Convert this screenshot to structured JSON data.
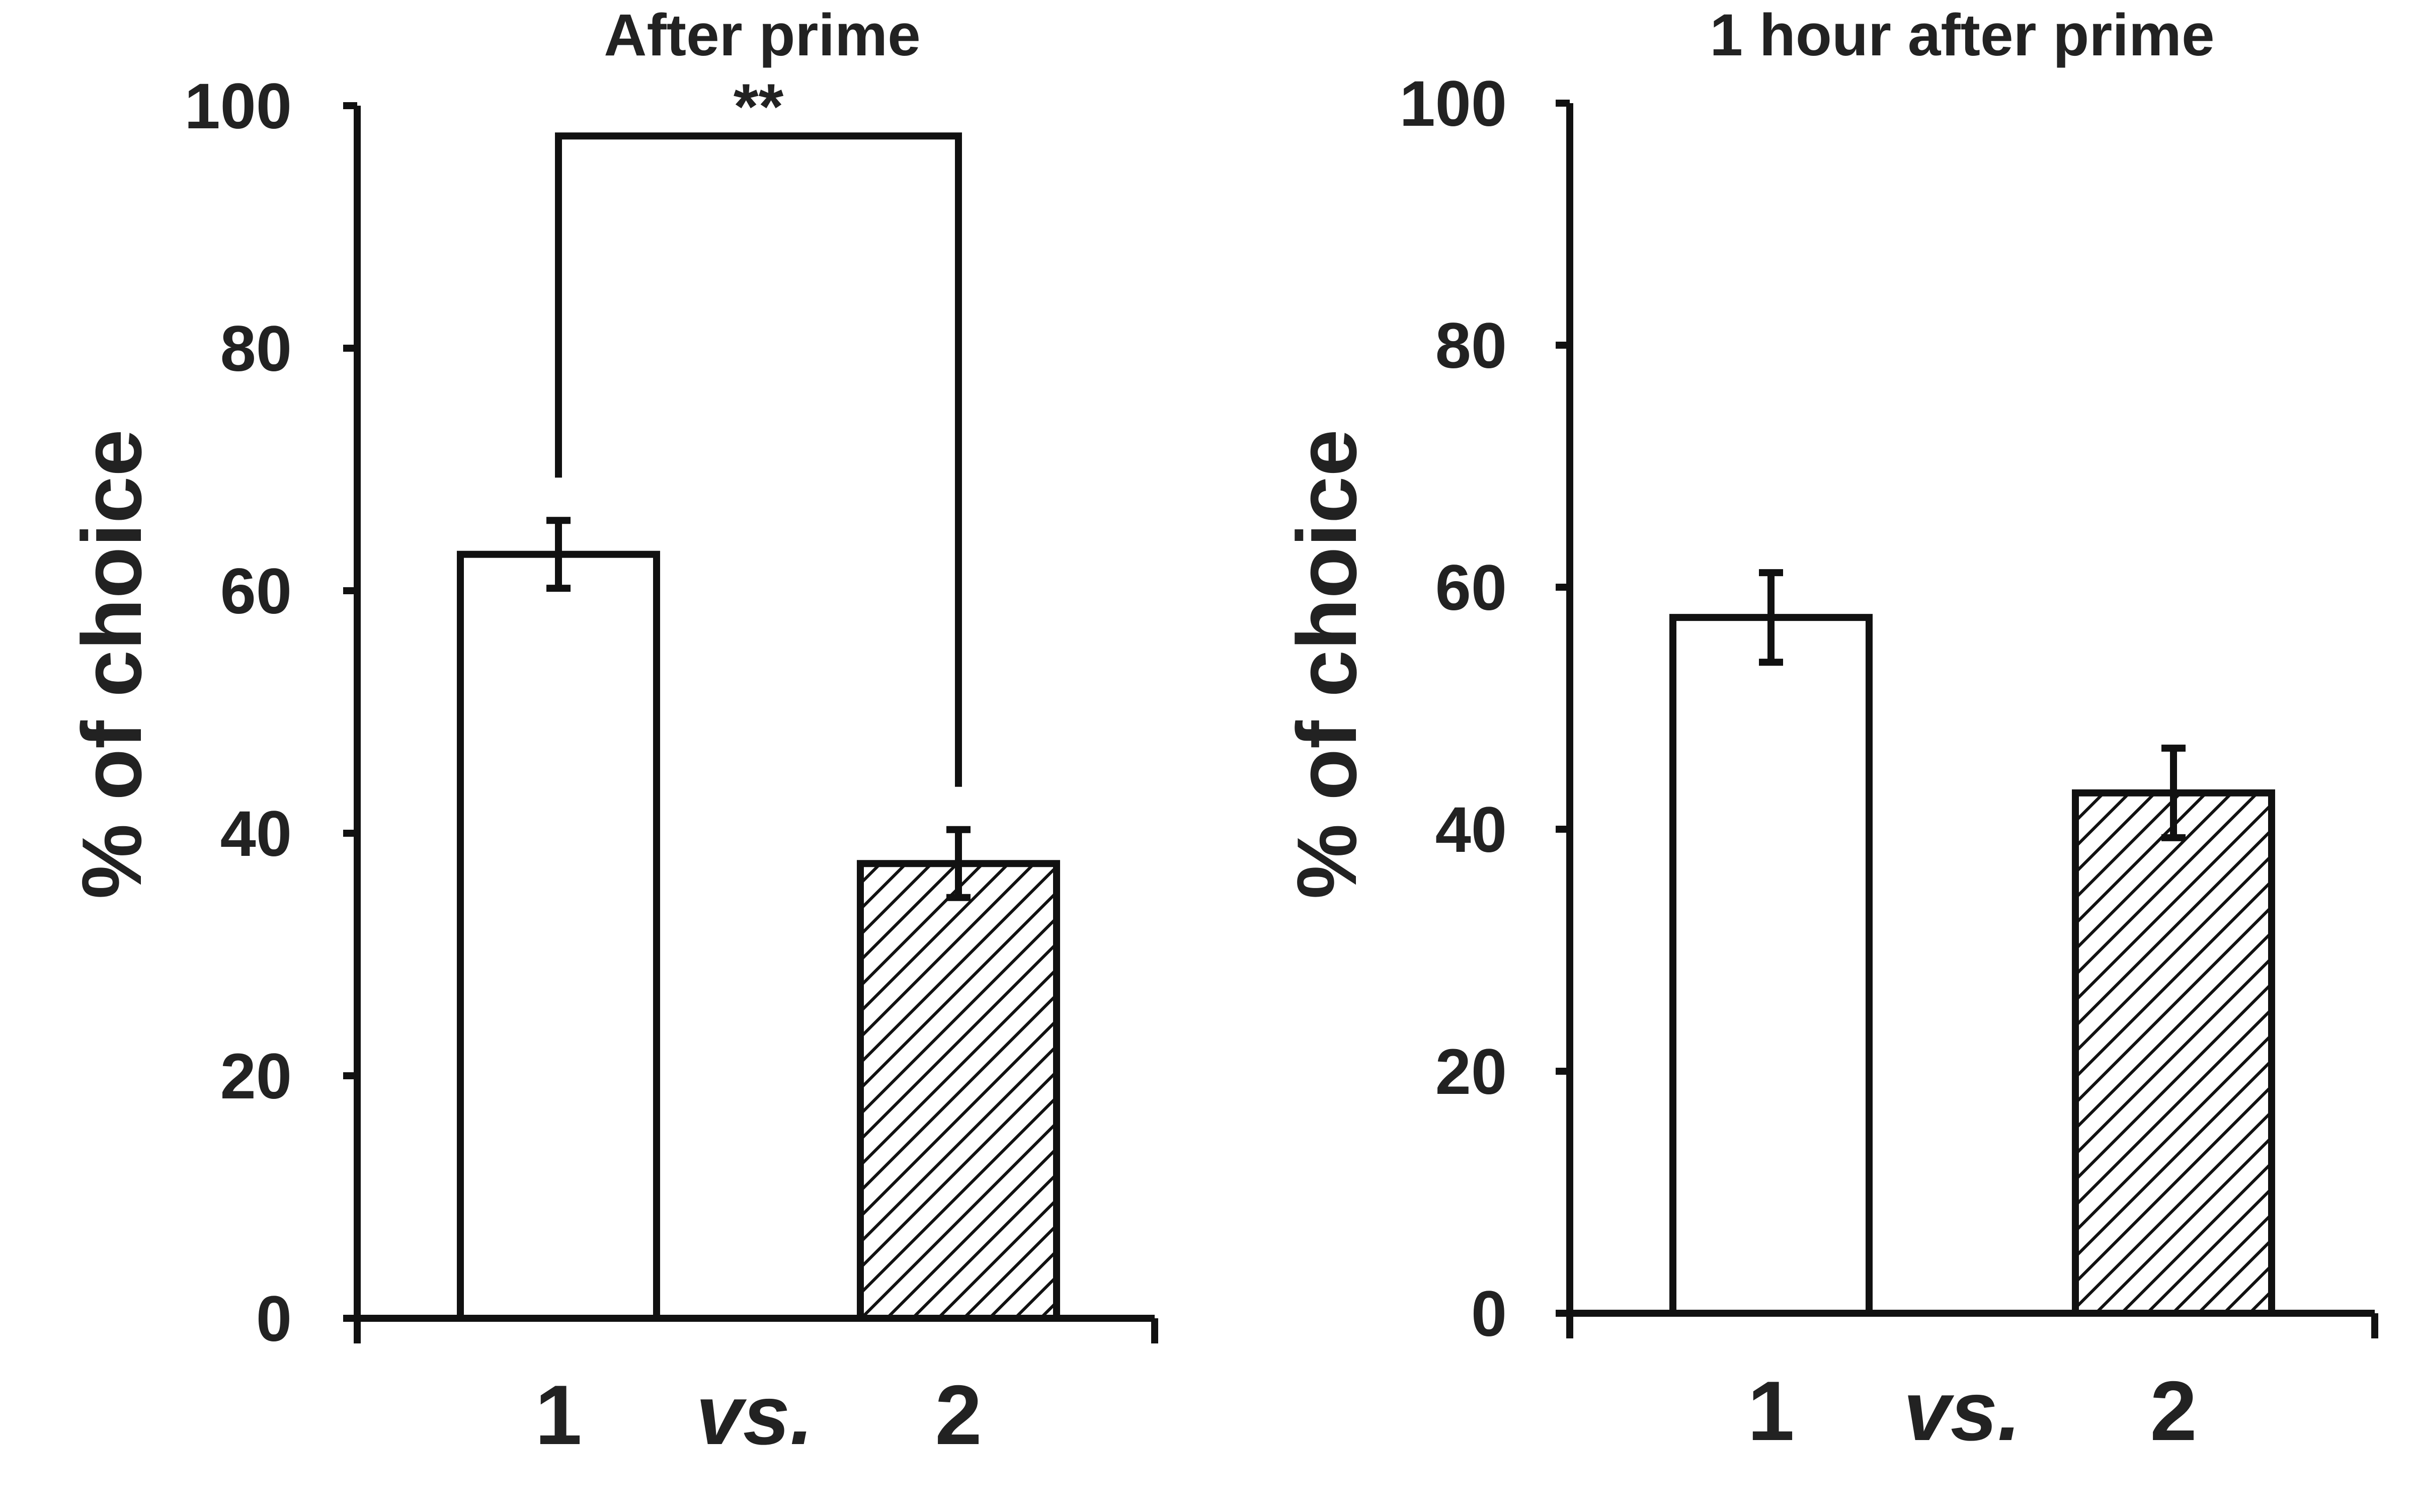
{
  "chart_data": [
    {
      "type": "bar",
      "title": "After prime",
      "ylabel": "% of choice",
      "xlabel": "",
      "ylim": [
        0,
        100
      ],
      "yticks": [
        0,
        20,
        40,
        60,
        80,
        100
      ],
      "categories": [
        "1",
        "2"
      ],
      "separator_label": "vs.",
      "values": [
        63,
        37.5
      ],
      "errors": [
        2.8,
        2.8
      ],
      "bar_fills": [
        "white",
        "hatched"
      ],
      "significance": {
        "label": "**",
        "between": [
          0,
          1
        ]
      },
      "grid": false,
      "legend": "none"
    },
    {
      "type": "bar",
      "title": "1 hour after prime",
      "ylabel": "% of choice",
      "xlabel": "",
      "ylim": [
        0,
        100
      ],
      "yticks": [
        0,
        20,
        40,
        60,
        80,
        100
      ],
      "categories": [
        "1",
        "2"
      ],
      "separator_label": "vs.",
      "values": [
        57.5,
        43
      ],
      "errors": [
        3.7,
        3.7
      ],
      "bar_fills": [
        "white",
        "hatched"
      ],
      "grid": false,
      "legend": "none"
    }
  ]
}
